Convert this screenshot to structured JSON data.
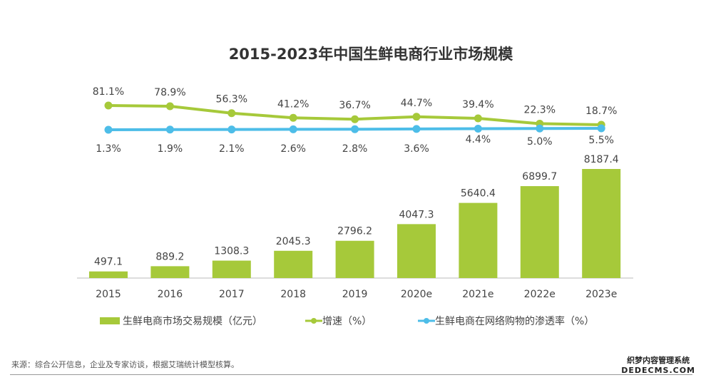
{
  "chart_data": {
    "type": "bar+line",
    "title": "2015-2023年中国生鲜电商行业市场规模",
    "categories": [
      "2015",
      "2016",
      "2017",
      "2018",
      "2019",
      "2020e",
      "2021e",
      "2022e",
      "2023e"
    ],
    "series": [
      {
        "name": "生鲜电商市场交易规模（亿元）",
        "type": "bar",
        "color": "#a6c93a",
        "values": [
          497.1,
          889.2,
          1308.3,
          2045.3,
          2796.2,
          4047.3,
          5640.4,
          6899.7,
          8187.4
        ],
        "labels": [
          "497.1",
          "889.2",
          "1308.3",
          "2045.3",
          "2796.2",
          "4047.3",
          "5640.4",
          "6899.7",
          "8187.4"
        ]
      },
      {
        "name": "增速（%）",
        "type": "line",
        "color": "#a6c93a",
        "values": [
          81.1,
          78.9,
          56.3,
          41.2,
          36.7,
          44.7,
          39.4,
          22.3,
          18.7
        ],
        "labels": [
          "81.1%",
          "78.9%",
          "56.3%",
          "41.2%",
          "36.7%",
          "44.7%",
          "39.4%",
          "22.3%",
          "18.7%"
        ]
      },
      {
        "name": "生鲜电商在网络购物的渗透率（%）",
        "type": "line",
        "color": "#4dbde8",
        "values": [
          1.3,
          1.9,
          2.1,
          2.6,
          2.8,
          3.6,
          4.4,
          5.0,
          5.5
        ],
        "labels": [
          "1.3%",
          "1.9%",
          "2.1%",
          "2.6%",
          "2.8%",
          "3.6%",
          "4.4%",
          "5.0%",
          "5.5%"
        ]
      }
    ],
    "legend": "bottom"
  },
  "source": "来源：综合公开信息，企业及专家访谈，根据艾瑞统计模型核算。",
  "watermark": {
    "line1": "织梦内容管理系统",
    "line2": "DEDECMS.COM"
  }
}
